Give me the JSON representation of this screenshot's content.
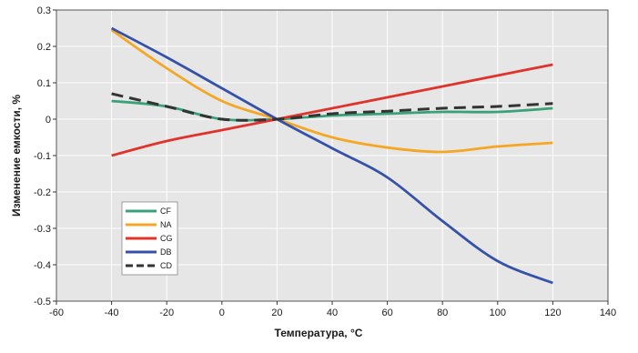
{
  "chart_data": {
    "type": "line",
    "xlabel": "Температура, °C",
    "ylabel": "Изменение емкости, %",
    "xlim": [
      -60,
      140
    ],
    "ylim": [
      -0.5,
      0.3
    ],
    "x_ticks": [
      -60,
      -40,
      -20,
      0,
      20,
      40,
      60,
      80,
      100,
      120,
      140
    ],
    "y_ticks": [
      0.3,
      0.2,
      0.1,
      0,
      -0.1,
      -0.2,
      -0.3,
      -0.4,
      -0.5
    ],
    "x_tick_labels": [
      "-60",
      "-40",
      "-20",
      "0",
      "20",
      "40",
      "60",
      "80",
      "100",
      "120",
      "140"
    ],
    "y_tick_labels": [
      "0.3",
      "0.2",
      "0.1",
      "0",
      "-0.1",
      "-0.2",
      "-0.3",
      "-0.4",
      "-0.5"
    ],
    "grid": true,
    "plot_background": "#e6e6e6",
    "legend_position": "lower-left",
    "series": [
      {
        "name": "CF",
        "color": "#3aa27a",
        "dashed": false,
        "points": [
          [
            -40,
            0.05
          ],
          [
            -20,
            0.035
          ],
          [
            0,
            0.0
          ],
          [
            20,
            0.0
          ],
          [
            40,
            0.01
          ],
          [
            60,
            0.015
          ],
          [
            80,
            0.02
          ],
          [
            100,
            0.02
          ],
          [
            120,
            0.03
          ]
        ]
      },
      {
        "name": "NA",
        "color": "#f5a623",
        "dashed": false,
        "points": [
          [
            -40,
            0.245
          ],
          [
            -20,
            0.14
          ],
          [
            0,
            0.05
          ],
          [
            20,
            0.0
          ],
          [
            40,
            -0.05
          ],
          [
            60,
            -0.078
          ],
          [
            80,
            -0.09
          ],
          [
            100,
            -0.075
          ],
          [
            120,
            -0.065
          ]
        ]
      },
      {
        "name": "CG",
        "color": "#e0332b",
        "dashed": false,
        "points": [
          [
            -40,
            -0.1
          ],
          [
            -20,
            -0.06
          ],
          [
            0,
            -0.03
          ],
          [
            20,
            0.0
          ],
          [
            40,
            0.03
          ],
          [
            60,
            0.06
          ],
          [
            80,
            0.09
          ],
          [
            100,
            0.12
          ],
          [
            120,
            0.15
          ]
        ]
      },
      {
        "name": "DB",
        "color": "#3552a8",
        "dashed": false,
        "points": [
          [
            -40,
            0.25
          ],
          [
            -20,
            0.17
          ],
          [
            0,
            0.085
          ],
          [
            20,
            0.0
          ],
          [
            40,
            -0.08
          ],
          [
            60,
            -0.16
          ],
          [
            80,
            -0.28
          ],
          [
            100,
            -0.39
          ],
          [
            120,
            -0.45
          ]
        ]
      },
      {
        "name": "CD",
        "color": "#333333",
        "dashed": true,
        "points": [
          [
            -40,
            0.07
          ],
          [
            -20,
            0.035
          ],
          [
            0,
            0.0
          ],
          [
            20,
            0.0
          ],
          [
            40,
            0.015
          ],
          [
            60,
            0.022
          ],
          [
            80,
            0.03
          ],
          [
            100,
            0.035
          ],
          [
            120,
            0.043
          ]
        ]
      }
    ]
  }
}
